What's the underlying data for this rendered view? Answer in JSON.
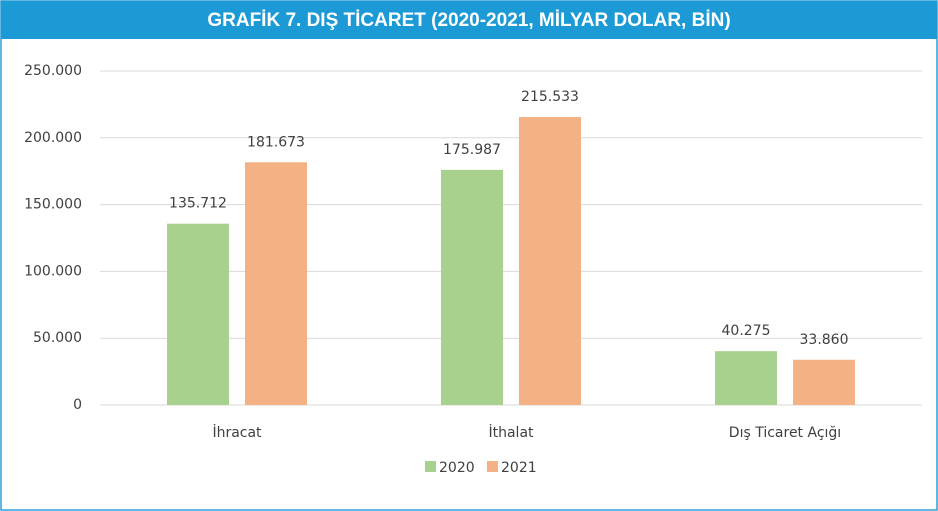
{
  "chart_data": {
    "type": "bar",
    "title": "GRAFİK 7. DIŞ TİCARET (2020-2021, MİLYAR DOLAR, BİN)",
    "categories": [
      "İhracat",
      "İthalat",
      "Dış Ticaret Açığı"
    ],
    "series": [
      {
        "name": "2020",
        "color": "#a9d18e",
        "values": [
          135712,
          175987,
          40275
        ],
        "value_labels": [
          "135.712",
          "175.987",
          "40.275"
        ]
      },
      {
        "name": "2021",
        "color": "#f4b183",
        "values": [
          181673,
          215533,
          33860
        ],
        "value_labels": [
          "181.673",
          "215.533",
          "33.860"
        ]
      }
    ],
    "ylim": [
      0,
      250000
    ],
    "yticks": [
      0,
      {
        "value": 50000,
        "label": "50.000"
      },
      {
        "value": 100000,
        "label": "100.000"
      },
      {
        "value": 150000,
        "label": "150.000"
      },
      {
        "value": 200000,
        "label": "200.000"
      },
      {
        "value": 250000,
        "label": "250.000"
      }
    ],
    "grid": true,
    "legend": "bottom"
  }
}
